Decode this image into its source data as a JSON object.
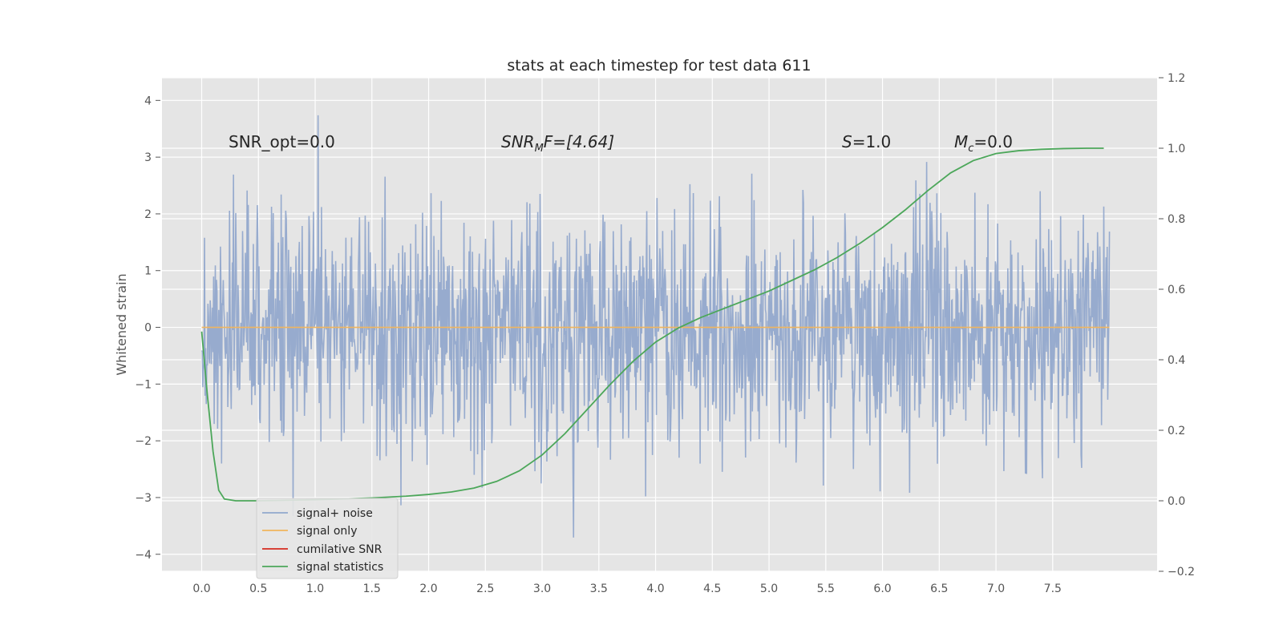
{
  "chart_data": {
    "type": "line",
    "title": "stats at each timestep for test data 611",
    "ylabel": "Whitened strain",
    "y2label": "",
    "xlim": [
      -0.35,
      8.42
    ],
    "ylim": [
      -4.3,
      4.4
    ],
    "y2lim": [
      -0.2,
      1.2
    ],
    "xticks": [
      0.0,
      0.5,
      1.0,
      1.5,
      2.0,
      2.5,
      3.0,
      3.5,
      4.0,
      4.5,
      5.0,
      5.5,
      6.0,
      6.5,
      7.0,
      7.5
    ],
    "xtick_labels": [
      "0.0",
      "0.5",
      "1.0",
      "1.5",
      "2.0",
      "2.5",
      "3.0",
      "3.5",
      "4.0",
      "4.5",
      "5.0",
      "5.5",
      "6.0",
      "6.5",
      "7.0",
      "7.5"
    ],
    "yticks": [
      -4,
      -3,
      -2,
      -1,
      0,
      1,
      2,
      3,
      4
    ],
    "ytick_labels": [
      "−4",
      "−3",
      "−2",
      "−1",
      "0",
      "1",
      "2",
      "3",
      "4"
    ],
    "y2ticks": [
      -0.2,
      0.0,
      0.2,
      0.4,
      0.6,
      0.8,
      1.0,
      1.2
    ],
    "y2tick_labels": [
      "−0.2",
      "0.0",
      "0.2",
      "0.4",
      "0.6",
      "0.8",
      "1.0",
      "1.2"
    ],
    "grid": true,
    "background": "#e5e5e5",
    "annotations": {
      "snr_opt": "SNR_opt=0.0",
      "snr_mf_main": "SNR",
      "snr_mf_sub": "M",
      "snr_mf_rest": "F=[4.64]",
      "s_main": "S",
      "s_rest": "=1.0",
      "mc_main": "M",
      "mc_sub": "c",
      "mc_rest": "=0.0"
    },
    "noise": {
      "x_start": 0.0,
      "x_end": 8.0,
      "samples": 1600,
      "sigma": 1.05,
      "seed": 611
    },
    "series": [
      {
        "name": "signal+ noise",
        "color": "#92a8cc",
        "axis": "left",
        "style": "dense-noise"
      },
      {
        "name": "signal only",
        "color": "#f0b55d",
        "axis": "left",
        "x": [
          0.0,
          8.0
        ],
        "y": [
          0.0,
          0.0
        ]
      },
      {
        "name": "cumilative SNR",
        "color": "#d62b1f",
        "axis": "left",
        "x": [],
        "y": []
      },
      {
        "name": "signal statistics",
        "color": "#4ca75a",
        "axis": "right",
        "x": [
          0.0,
          0.05,
          0.1,
          0.15,
          0.2,
          0.3,
          0.5,
          1.0,
          1.5,
          1.8,
          2.0,
          2.2,
          2.4,
          2.6,
          2.8,
          3.0,
          3.2,
          3.4,
          3.6,
          3.8,
          4.0,
          4.2,
          4.4,
          4.6,
          4.8,
          5.0,
          5.2,
          5.4,
          5.6,
          5.8,
          6.0,
          6.2,
          6.4,
          6.6,
          6.8,
          7.0,
          7.2,
          7.4,
          7.6,
          7.8,
          7.95
        ],
        "y": [
          0.48,
          0.3,
          0.14,
          0.03,
          0.005,
          0.0,
          0.0,
          0.003,
          0.008,
          0.013,
          0.018,
          0.025,
          0.036,
          0.055,
          0.085,
          0.13,
          0.19,
          0.26,
          0.33,
          0.395,
          0.45,
          0.49,
          0.52,
          0.545,
          0.57,
          0.595,
          0.625,
          0.655,
          0.69,
          0.73,
          0.775,
          0.825,
          0.88,
          0.93,
          0.965,
          0.985,
          0.993,
          0.997,
          0.999,
          1.0,
          1.0
        ]
      }
    ],
    "legend": {
      "position": "lower-left",
      "entries": [
        "signal+ noise",
        "signal only",
        "cumilative SNR",
        "signal statistics"
      ]
    }
  }
}
